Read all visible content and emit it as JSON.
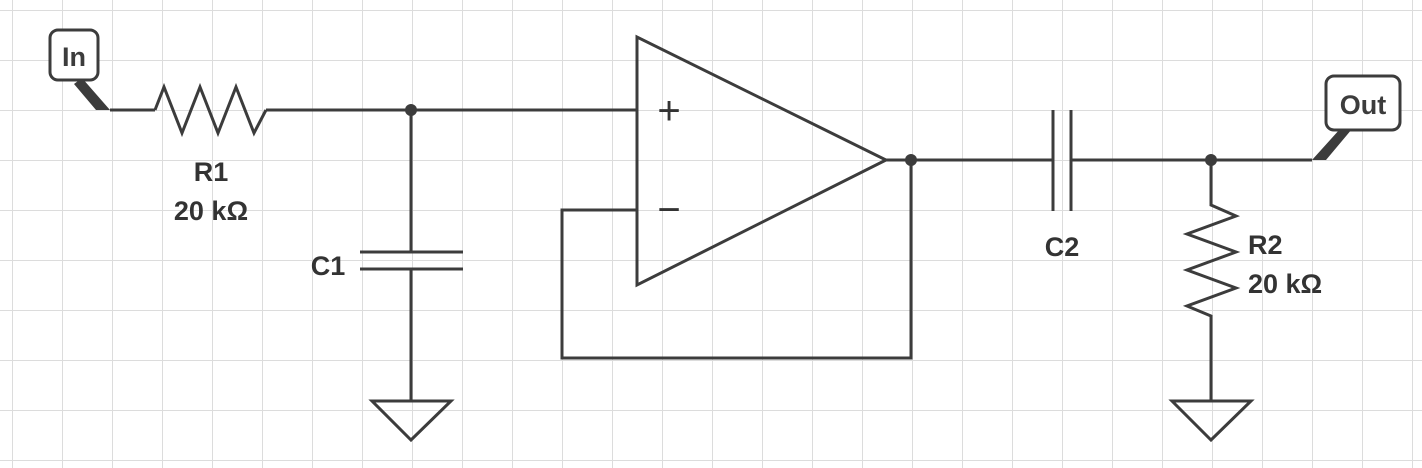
{
  "ports": {
    "input": "In",
    "output": "Out"
  },
  "components": {
    "r1": {
      "name": "R1",
      "value": "20 kΩ"
    },
    "c1": {
      "name": "C1"
    },
    "c2": {
      "name": "C2"
    },
    "r2": {
      "name": "R2",
      "value": "20 kΩ"
    }
  },
  "opamp": {
    "plus": "+",
    "minus": "−"
  },
  "colors": {
    "wire": "#3c3c3c",
    "grid": "#dcdcdc",
    "background": "#ffffff"
  }
}
